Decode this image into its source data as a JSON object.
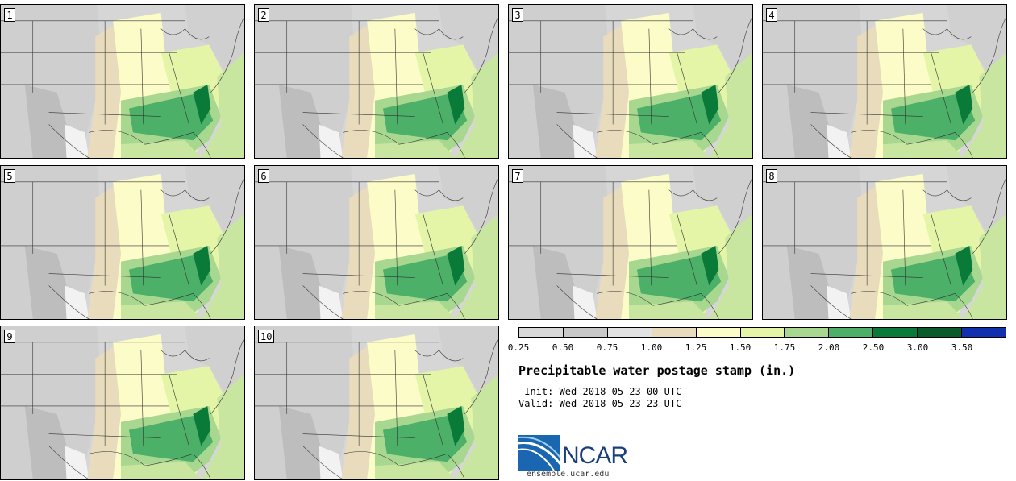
{
  "stamps": [
    {
      "label": "1"
    },
    {
      "label": "2"
    },
    {
      "label": "3"
    },
    {
      "label": "4"
    },
    {
      "label": "5"
    },
    {
      "label": "6"
    },
    {
      "label": "7"
    },
    {
      "label": "8"
    },
    {
      "label": "9"
    },
    {
      "label": "10"
    }
  ],
  "colorbar": {
    "colors": [
      "#d8d8d8",
      "#c8c8c8",
      "#e2e2e2",
      "#e8dcbc",
      "#fcfcc8",
      "#e4f5a8",
      "#a8d890",
      "#4cb068",
      "#0a7a38",
      "#0a5a2a",
      "#1030b0"
    ],
    "ticks": [
      "0.25",
      "0.50",
      "0.75",
      "1.00",
      "1.25",
      "1.50",
      "1.75",
      "2.00",
      "2.50",
      "3.00",
      "3.50"
    ]
  },
  "title": "Precipitable water postage stamp (in.)",
  "init": " Init: Wed 2018-05-23 00 UTC",
  "valid": "Valid: Wed 2018-05-23 23 UTC",
  "logo": {
    "text": "NCAR",
    "url": "ensemble.ucar.edu"
  }
}
